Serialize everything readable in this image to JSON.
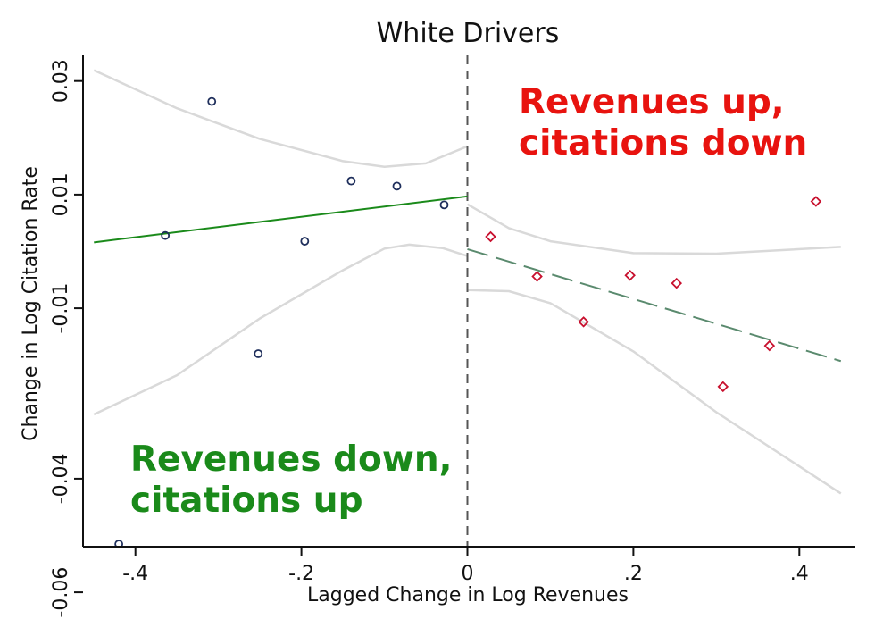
{
  "chart_data": {
    "type": "scatter",
    "title": "White Drivers",
    "xlabel": "Lagged Change in Log Revenues",
    "ylabel": "Change in Log Citation Rate",
    "xlim": [
      -0.465,
      0.45
    ],
    "ylim": [
      -0.064,
      0.034
    ],
    "xticks": [
      {
        "value": -0.4,
        "label": "-.4"
      },
      {
        "value": -0.2,
        "label": "-.2"
      },
      {
        "value": 0,
        "label": "0"
      },
      {
        "value": 0.2,
        "label": ".2"
      },
      {
        "value": 0.4,
        "label": ".4"
      }
    ],
    "yticks": [
      {
        "value": 0.03,
        "label": "0.03"
      },
      {
        "value": 0.01,
        "label": "0.01"
      },
      {
        "value": -0.01,
        "label": "-0.01"
      },
      {
        "value": -0.04,
        "label": "-0.04"
      },
      {
        "value": -0.06,
        "label": "-0.06"
      }
    ],
    "cutoff_x": 0,
    "series": [
      {
        "marker": "circle",
        "color": "#1f2f5c",
        "points": [
          [
            -0.42,
            -0.0515
          ],
          [
            -0.364,
            0.0028
          ],
          [
            -0.308,
            0.0264
          ],
          [
            -0.252,
            -0.018
          ],
          [
            -0.196,
            0.0018
          ],
          [
            -0.14,
            0.0124
          ],
          [
            -0.085,
            0.0115
          ],
          [
            -0.028,
            0.0082
          ]
        ]
      },
      {
        "marker": "diamond",
        "color": "#c8102e",
        "points": [
          [
            0.028,
            0.0026
          ],
          [
            0.084,
            -0.0044
          ],
          [
            0.14,
            -0.0124
          ],
          [
            0.196,
            -0.0042
          ],
          [
            0.252,
            -0.0056
          ],
          [
            0.308,
            -0.0238
          ],
          [
            0.364,
            -0.0166
          ],
          [
            0.42,
            0.0088
          ]
        ]
      }
    ],
    "fit_lines": [
      {
        "side": "left",
        "color": "#1a8a1a",
        "dash": "solid",
        "points": [
          [
            -0.45,
            0.0016
          ],
          [
            0,
            0.0097
          ]
        ]
      },
      {
        "side": "right",
        "color": "#5a8a6e",
        "dash": "dashed",
        "points": [
          [
            0,
            0.0004
          ],
          [
            0.45,
            -0.0193
          ]
        ]
      }
    ],
    "confidence_bands": [
      {
        "side": "left",
        "bound": "upper",
        "points": [
          [
            -0.45,
            0.0319
          ],
          [
            -0.35,
            0.0252
          ],
          [
            -0.25,
            0.0198
          ],
          [
            -0.15,
            0.0159
          ],
          [
            -0.1,
            0.0149
          ],
          [
            -0.05,
            0.0155
          ],
          [
            0,
            0.0185
          ]
        ]
      },
      {
        "side": "left",
        "bound": "lower",
        "points": [
          [
            -0.45,
            -0.0287
          ],
          [
            -0.35,
            -0.0218
          ],
          [
            -0.25,
            -0.0118
          ],
          [
            -0.15,
            -0.0033
          ],
          [
            -0.1,
            0.0005
          ],
          [
            -0.07,
            0.0012
          ],
          [
            -0.03,
            0.0006
          ],
          [
            0,
            -0.0008
          ]
        ]
      },
      {
        "side": "right",
        "bound": "upper",
        "points": [
          [
            0,
            0.0083
          ],
          [
            0.05,
            0.0041
          ],
          [
            0.1,
            0.0018
          ],
          [
            0.2,
            -0.0003
          ],
          [
            0.3,
            -0.0004
          ],
          [
            0.45,
            0.0008
          ]
        ]
      },
      {
        "side": "right",
        "bound": "lower",
        "points": [
          [
            0,
            -0.0068
          ],
          [
            0.05,
            -0.007
          ],
          [
            0.1,
            -0.0091
          ],
          [
            0.2,
            -0.0176
          ],
          [
            0.3,
            -0.0283
          ],
          [
            0.45,
            -0.0426
          ]
        ]
      }
    ],
    "colors": {
      "band": "#d9d9d9",
      "cutoff": "#555555",
      "axis": "#111111"
    },
    "annotations": [
      {
        "lines": [
          "Revenues up,",
          "citations down"
        ],
        "color": "#e8130f",
        "position": "top-right"
      },
      {
        "lines": [
          "Revenues down,",
          "citations up"
        ],
        "color": "#1a8a1a",
        "position": "bottom-left"
      }
    ]
  }
}
